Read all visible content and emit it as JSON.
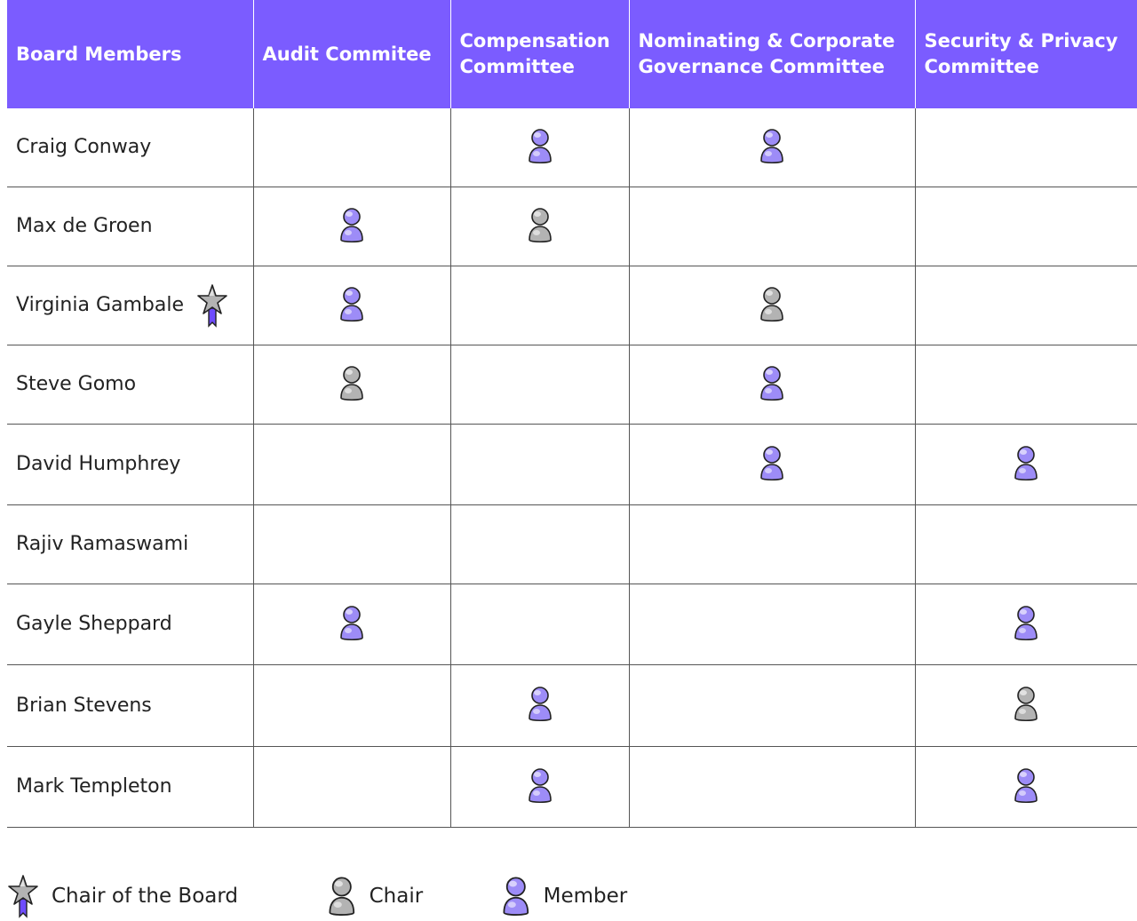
{
  "header": {
    "members": "Board Members",
    "audit": "Audit Commitee",
    "compensation": "Compensation Committee",
    "nominating": "Nominating & Corporate Governance Committee",
    "security": "Security & Privacy Committee"
  },
  "rows": [
    {
      "name": "Craig Conway",
      "chair_of_board": false,
      "audit": "",
      "compensation": "member",
      "nominating": "member",
      "security": ""
    },
    {
      "name": "Max de Groen",
      "chair_of_board": false,
      "audit": "member",
      "compensation": "chair",
      "nominating": "",
      "security": ""
    },
    {
      "name": "Virginia Gambale",
      "chair_of_board": true,
      "audit": "member",
      "compensation": "",
      "nominating": "chair",
      "security": ""
    },
    {
      "name": "Steve Gomo",
      "chair_of_board": false,
      "audit": "chair",
      "compensation": "",
      "nominating": "member",
      "security": ""
    },
    {
      "name": "David Humphrey",
      "chair_of_board": false,
      "audit": "",
      "compensation": "",
      "nominating": "member",
      "security": "member"
    },
    {
      "name": "Rajiv Ramaswami",
      "chair_of_board": false,
      "audit": "",
      "compensation": "",
      "nominating": "",
      "security": ""
    },
    {
      "name": "Gayle Sheppard",
      "chair_of_board": false,
      "audit": "member",
      "compensation": "",
      "nominating": "",
      "security": "member"
    },
    {
      "name": "Brian Stevens",
      "chair_of_board": false,
      "audit": "",
      "compensation": "member",
      "nominating": "",
      "security": "chair"
    },
    {
      "name": "Mark Templeton",
      "chair_of_board": false,
      "audit": "",
      "compensation": "member",
      "nominating": "",
      "security": "member"
    }
  ],
  "legend": {
    "chair_of_board": "Chair of the Board",
    "chair": "Chair",
    "member": "Member"
  },
  "colors": {
    "header_bg": "#7b5cff",
    "member_icon": "#9d8cf7",
    "chair_icon": "#b3b3b3",
    "accent_ribbon": "#6e4cff"
  },
  "icons": {
    "member": "member-person-icon",
    "chair": "chair-person-icon",
    "chair_of_board": "chair-of-board-star-icon"
  }
}
